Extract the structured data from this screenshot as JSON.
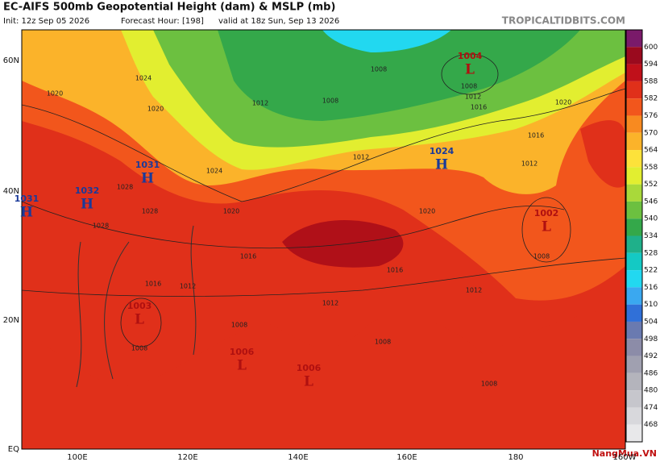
{
  "header": {
    "title": "EC-AIFS 500mb Geopotential Height (dam) & MSLP (mb)",
    "init": "Init: 12z Sep 05 2026",
    "forecast_hour": "Forecast Hour: [198]",
    "valid": "valid at 18z Sun, Sep 13 2026",
    "site": "TROPICALTIDBITS.COM"
  },
  "axes": {
    "lat_labels": [
      "60N",
      "40N",
      "20N",
      "EQ"
    ],
    "lon_labels": [
      "100E",
      "120E",
      "140E",
      "160E",
      "180",
      "160W"
    ]
  },
  "colorbar": [
    {
      "value": 600,
      "color": "#9a0a1e"
    },
    {
      "value": 594,
      "color": "#c0101a"
    },
    {
      "value": 588,
      "color": "#e0301a"
    },
    {
      "value": 582,
      "color": "#f2561c"
    },
    {
      "value": 576,
      "color": "#f88a20"
    },
    {
      "value": 570,
      "color": "#fbb32a"
    },
    {
      "value": 564,
      "color": "#fde23a"
    },
    {
      "value": 558,
      "color": "#e2ee30"
    },
    {
      "value": 552,
      "color": "#a9d93a"
    },
    {
      "value": 546,
      "color": "#6cc040"
    },
    {
      "value": 540,
      "color": "#34a84a"
    },
    {
      "value": 534,
      "color": "#1fb08a"
    },
    {
      "value": 528,
      "color": "#14c9c4"
    },
    {
      "value": 522,
      "color": "#22d8f0"
    },
    {
      "value": 516,
      "color": "#3aa8f0"
    },
    {
      "value": 510,
      "color": "#3070d8"
    },
    {
      "value": 504,
      "color": "#6a7ab0"
    },
    {
      "value": 498,
      "color": "#8c8ca8"
    },
    {
      "value": 492,
      "color": "#a0a0b0"
    },
    {
      "value": 486,
      "color": "#b4b4bc"
    },
    {
      "value": 480,
      "color": "#c6c6cc"
    },
    {
      "value": 474,
      "color": "#d8d8dc"
    },
    {
      "value": 468,
      "color": "#e8e8ea"
    }
  ],
  "pressure_centers": [
    {
      "type": "H",
      "value": 1031
    },
    {
      "type": "H",
      "value": 1032
    },
    {
      "type": "H",
      "value": 1031
    },
    {
      "type": "H",
      "value": 1024
    },
    {
      "type": "L",
      "value": 1004
    },
    {
      "type": "L",
      "value": 1002
    },
    {
      "type": "L",
      "value": 1003
    },
    {
      "type": "L",
      "value": 1006
    },
    {
      "type": "L",
      "value": 1006
    }
  ],
  "isobar_labels": [
    "1024",
    "1020",
    "1020",
    "1024",
    "1028",
    "1028",
    "1028",
    "1020",
    "1016",
    "1016",
    "1012",
    "1012",
    "1008",
    "1008",
    "1012",
    "1020",
    "1016",
    "1012",
    "1008",
    "1008",
    "1008",
    "1008",
    "1012",
    "1012",
    "1016",
    "1020",
    "1016",
    "1012",
    "1008",
    "1008"
  ],
  "watermark": "NangMua.VN"
}
